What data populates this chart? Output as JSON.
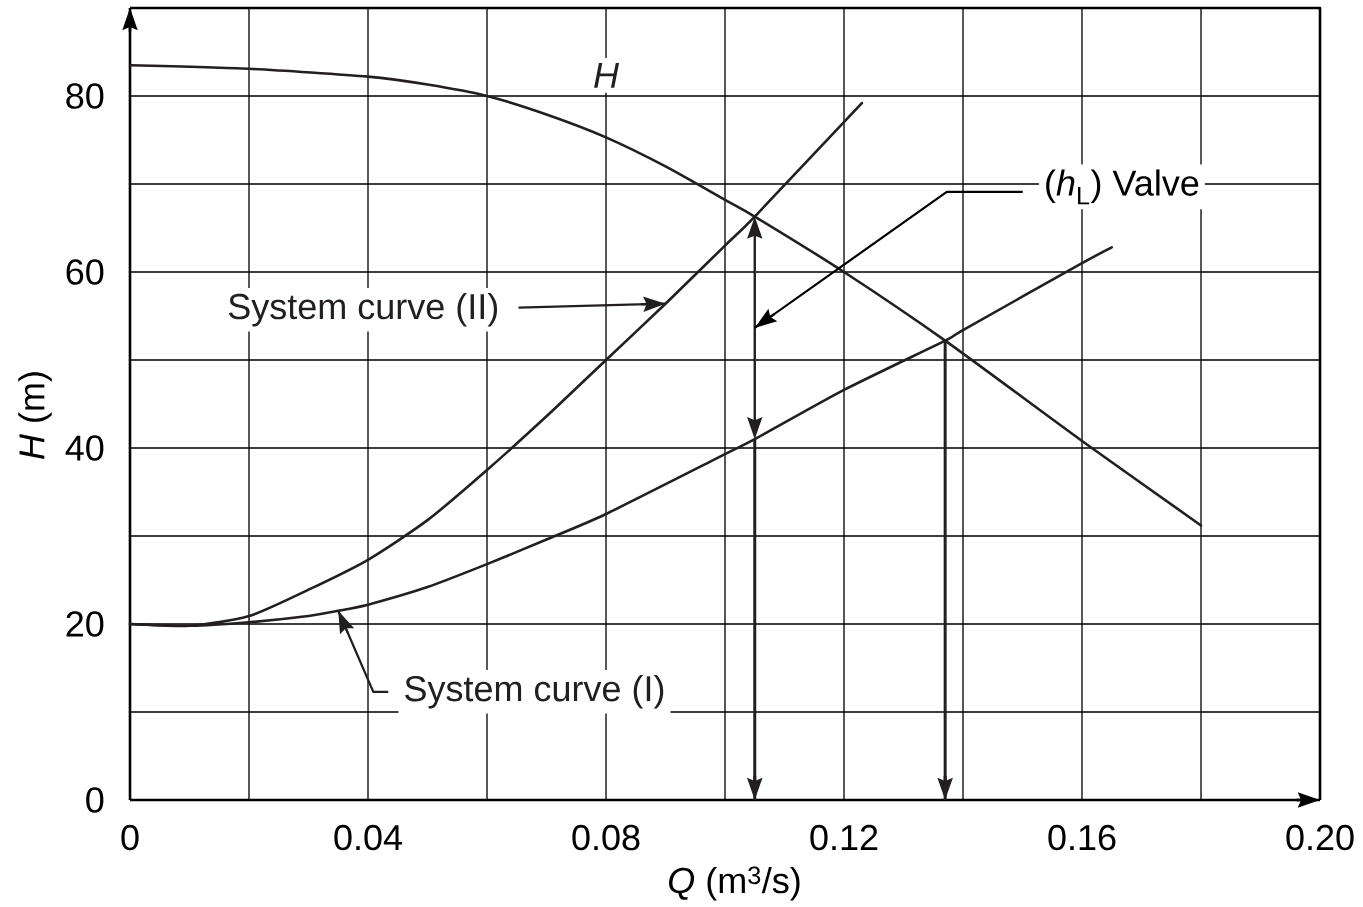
{
  "chart_data": {
    "type": "line",
    "xlabel": "*Q* (m$^{3}$/s)",
    "ylabel": "*H* (m)",
    "xlim": [
      0,
      0.2
    ],
    "ylim": [
      0,
      90
    ],
    "xticks": [
      0,
      {
        "value": 0.02,
        "label": null
      },
      0.04,
      {
        "value": 0.06,
        "label": null
      },
      0.08,
      {
        "value": 0.1,
        "label": null
      },
      0.12,
      {
        "value": 0.14,
        "label": null
      },
      0.16,
      {
        "value": 0.18,
        "label": null
      },
      {
        "value": 0.2,
        "label": "0.20"
      }
    ],
    "yticks": [
      0,
      {
        "value": 10,
        "label": null
      },
      20,
      {
        "value": 30,
        "label": null
      },
      40,
      {
        "value": 50,
        "label": null
      },
      60,
      {
        "value": 70,
        "label": null
      },
      80
    ],
    "grid": true,
    "marker": "none",
    "series": [
      {
        "name": "H",
        "color": "#231f20",
        "x": [
          0,
          0.02,
          0.04,
          0.05,
          0.06,
          0.07,
          0.08,
          0.09,
          0.1,
          0.105,
          0.12,
          0.137,
          0.16,
          0.18
        ],
        "values": [
          83.5,
          83.1,
          82.2,
          81.3,
          80,
          77.9,
          75.3,
          72.0,
          68.2,
          66.3,
          60,
          52.2,
          40.8,
          31.2
        ]
      },
      {
        "name": "System curve (II)",
        "color": "#231f20",
        "x": [
          0,
          0.01,
          0.02,
          0.03,
          0.04,
          0.05,
          0.06,
          0.07,
          0.08,
          0.09,
          0.1,
          0.105,
          0.123
        ],
        "values": [
          20,
          19.8,
          20.9,
          23.9,
          27.3,
          31.8,
          37.5,
          43.6,
          50,
          56.4,
          63,
          66.3,
          79.2
        ]
      },
      {
        "name": "System curve (I)",
        "color": "#231f20",
        "x": [
          0,
          0.01,
          0.02,
          0.03,
          0.035,
          0.04,
          0.05,
          0.06,
          0.07,
          0.08,
          0.1,
          0.105,
          0.12,
          0.137,
          0.14,
          0.16,
          0.165
        ],
        "values": [
          20,
          19.8,
          20.2,
          20.9,
          21.5,
          22.2,
          24.2,
          26.8,
          29.6,
          32.5,
          39.3,
          41,
          46.6,
          52.2,
          53.4,
          61,
          62.8
        ]
      }
    ],
    "ref_lines": [
      {
        "axis": "x",
        "value": 0.105
      },
      {
        "axis": "x",
        "value": 0.137
      }
    ],
    "annotations": [
      "(*h*$_{L}$) Valve"
    ]
  }
}
